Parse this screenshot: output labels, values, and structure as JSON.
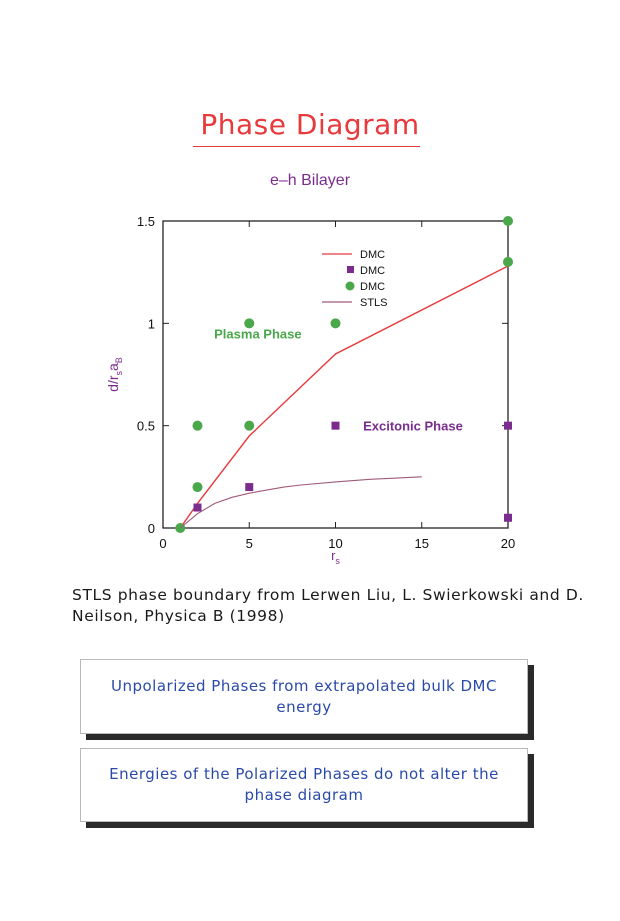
{
  "title": "Phase Diagram",
  "colors": {
    "title": "#e8393c",
    "subtitle": "#7b2d8e",
    "dmc_line": "#e8393c",
    "dmc_square": "#7b2d8e",
    "dmc_circle": "#4aa84a",
    "stls_line": "#a05a7a",
    "plasma_label": "#4aa84a",
    "excitonic_label": "#7b2d8e",
    "box_text": "#2a4aa8"
  },
  "chart_data": {
    "type": "line",
    "title": "e–h Bilayer",
    "xlabel": "r_s",
    "ylabel": "d/r_s a_B",
    "xlim": [
      0,
      20
    ],
    "ylim": [
      0,
      1.5
    ],
    "x_ticks": [
      "0",
      "5",
      "10",
      "15",
      "20"
    ],
    "y_ticks": [
      "0",
      "0.5",
      "1",
      "1.5"
    ],
    "legend_position": "top-right",
    "series": [
      {
        "name": "DMC",
        "kind": "line",
        "color": "#e8393c",
        "points": [
          [
            1,
            0
          ],
          [
            2,
            0.12
          ],
          [
            5,
            0.45
          ],
          [
            10,
            0.85
          ],
          [
            20,
            1.28
          ]
        ]
      },
      {
        "name": "DMC",
        "kind": "square",
        "color": "#7b2d8e",
        "points": [
          [
            2,
            0.1
          ],
          [
            5,
            0.2
          ],
          [
            10,
            0.5
          ],
          [
            20,
            0.5
          ],
          [
            20,
            0.05
          ]
        ]
      },
      {
        "name": "DMC",
        "kind": "circle",
        "color": "#4aa84a",
        "points": [
          [
            1,
            0
          ],
          [
            2,
            0.2
          ],
          [
            2,
            0.5
          ],
          [
            5,
            0.5
          ],
          [
            5,
            1.0
          ],
          [
            10,
            1.0
          ],
          [
            20,
            1.3
          ],
          [
            20,
            1.5
          ]
        ]
      },
      {
        "name": "STLS",
        "kind": "line",
        "color": "#a05a7a",
        "points": [
          [
            1,
            0
          ],
          [
            2,
            0.07
          ],
          [
            3,
            0.12
          ],
          [
            4,
            0.15
          ],
          [
            5,
            0.17
          ],
          [
            6,
            0.185
          ],
          [
            7,
            0.2
          ],
          [
            8,
            0.21
          ],
          [
            10,
            0.225
          ],
          [
            12,
            0.238
          ],
          [
            15,
            0.25
          ]
        ]
      }
    ],
    "annotations": [
      {
        "text": "Plasma Phase",
        "x": 5.5,
        "y": 0.95,
        "color": "#4aa84a"
      },
      {
        "text": "Excitonic Phase",
        "x": 11.6,
        "y": 0.5,
        "color": "#7b2d8e"
      }
    ]
  },
  "citation": "STLS phase boundary from Lerwen Liu, L. Swierkowski and D. Neilson, Physica B (1998)",
  "boxes": [
    {
      "text": "Unpolarized Phases from extrapolated bulk DMC energy"
    },
    {
      "text": "Energies of the Polarized Phases do not alter the phase diagram"
    }
  ]
}
